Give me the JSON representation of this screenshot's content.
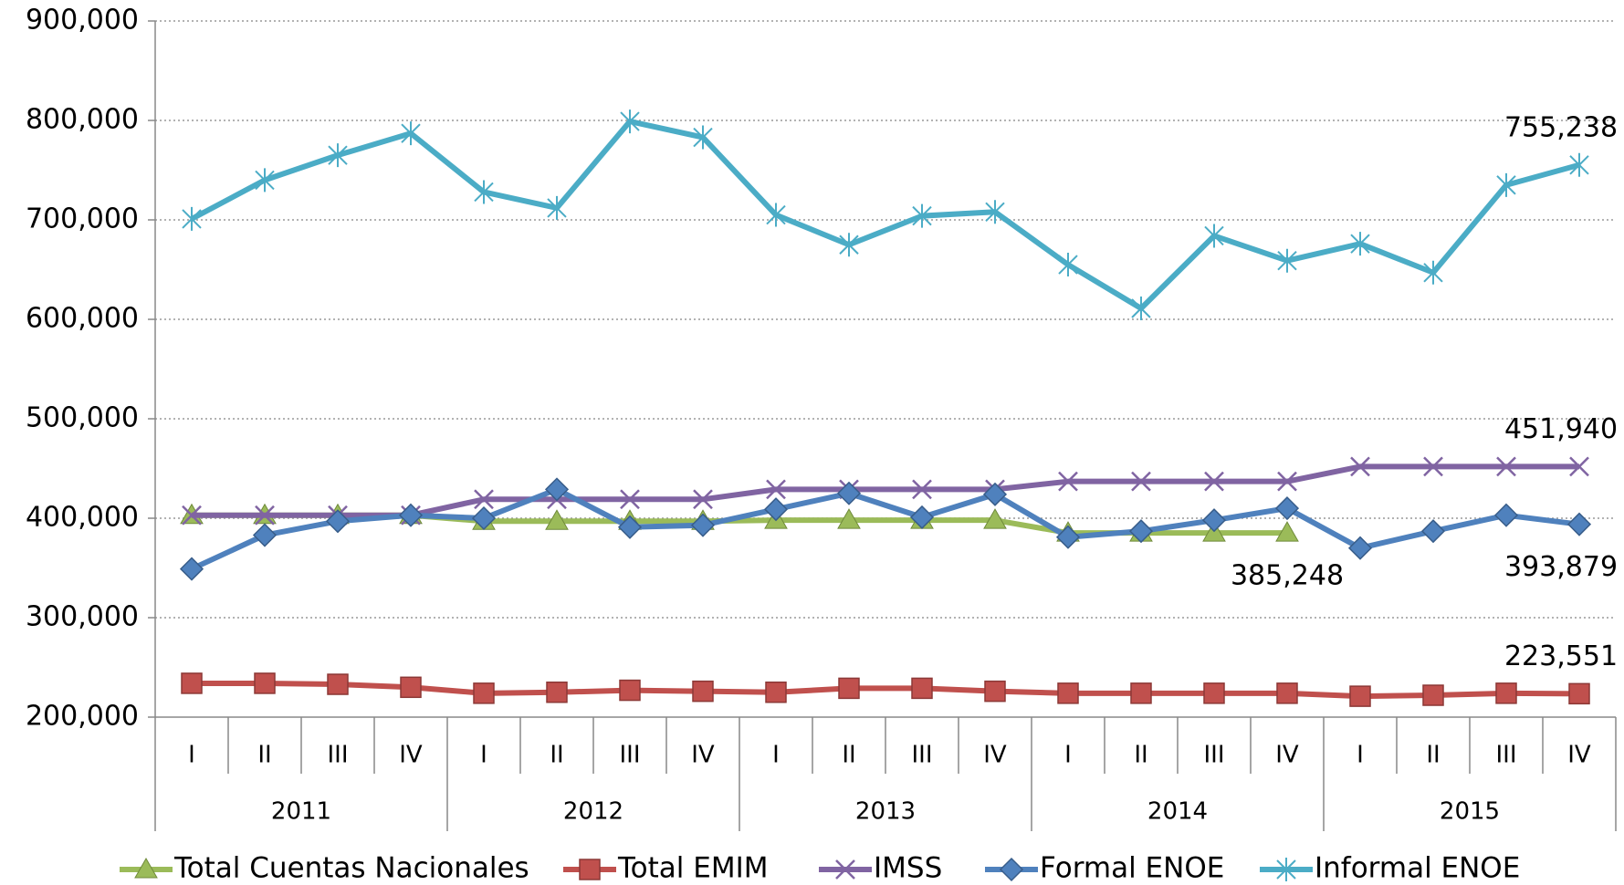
{
  "chart_data": {
    "type": "line",
    "categories": [
      "I",
      "II",
      "III",
      "IV",
      "I",
      "II",
      "III",
      "IV",
      "I",
      "II",
      "III",
      "IV",
      "I",
      "II",
      "III",
      "IV",
      "I",
      "II",
      "III",
      "IV"
    ],
    "x_groups": [
      "2011",
      "2012",
      "2013",
      "2014",
      "2015"
    ],
    "ylim": [
      200000,
      900000
    ],
    "yticks": [
      {
        "value": 200000,
        "label": "200,000"
      },
      {
        "value": 300000,
        "label": "300,000"
      },
      {
        "value": 400000,
        "label": "400,000"
      },
      {
        "value": 500000,
        "label": "500,000"
      },
      {
        "value": 600000,
        "label": "600,000"
      },
      {
        "value": 700000,
        "label": "700,000"
      },
      {
        "value": 800000,
        "label": "800,000"
      },
      {
        "value": 900000,
        "label": "900,000"
      }
    ],
    "grid": true,
    "legend": "bottom",
    "series": [
      {
        "name": "Total Cuentas Nacionales",
        "color": "#9bbb59",
        "marker": "triangle",
        "values": [
          403000,
          403000,
          403000,
          403000,
          397000,
          397000,
          397000,
          397000,
          398000,
          398000,
          398000,
          398000,
          385248,
          385248,
          385248,
          385248,
          null,
          null,
          null,
          null
        ],
        "value_labels": [
          null,
          null,
          null,
          null,
          null,
          null,
          null,
          null,
          null,
          null,
          null,
          null,
          null,
          null,
          null,
          "385,248",
          null,
          null,
          null,
          null
        ]
      },
      {
        "name": "Total EMIM",
        "color": "#c0504d",
        "marker": "square",
        "values": [
          234000,
          234000,
          233000,
          230000,
          224000,
          225000,
          227000,
          226000,
          225000,
          229000,
          229000,
          226000,
          224000,
          224000,
          224000,
          224000,
          221000,
          222000,
          224000,
          223551
        ],
        "value_labels": [
          null,
          null,
          null,
          null,
          null,
          null,
          null,
          null,
          null,
          null,
          null,
          null,
          null,
          null,
          null,
          null,
          null,
          null,
          null,
          "223,551"
        ]
      },
      {
        "name": "IMSS",
        "color": "#8064a2",
        "marker": "x",
        "values": [
          403000,
          403000,
          403000,
          403000,
          419000,
          419000,
          419000,
          419000,
          429000,
          429000,
          429000,
          429000,
          437000,
          437000,
          437000,
          437000,
          451940,
          451940,
          451940,
          451940
        ],
        "value_labels": [
          null,
          null,
          null,
          null,
          null,
          null,
          null,
          null,
          null,
          null,
          null,
          null,
          null,
          null,
          null,
          null,
          null,
          null,
          null,
          "451,940"
        ]
      },
      {
        "name": "Formal ENOE",
        "color": "#4f81bd",
        "marker": "diamond",
        "values": [
          349000,
          383000,
          397000,
          403000,
          400000,
          429000,
          391000,
          393000,
          409000,
          425000,
          401000,
          424000,
          381000,
          387000,
          398000,
          410000,
          370000,
          387000,
          403000,
          393879
        ],
        "value_labels": [
          null,
          null,
          null,
          null,
          null,
          null,
          null,
          null,
          null,
          null,
          null,
          null,
          null,
          null,
          null,
          null,
          null,
          null,
          null,
          "393,879"
        ]
      },
      {
        "name": "Informal ENOE",
        "color": "#4bacc6",
        "marker": "star",
        "values": [
          701000,
          740000,
          765000,
          787000,
          728000,
          712000,
          799000,
          783000,
          705000,
          675000,
          704000,
          708000,
          655000,
          611000,
          684000,
          659000,
          676000,
          647000,
          735000,
          755238
        ],
        "value_labels": [
          null,
          null,
          null,
          null,
          null,
          null,
          null,
          null,
          null,
          null,
          null,
          null,
          null,
          null,
          null,
          null,
          null,
          null,
          null,
          "755,238"
        ]
      }
    ]
  }
}
